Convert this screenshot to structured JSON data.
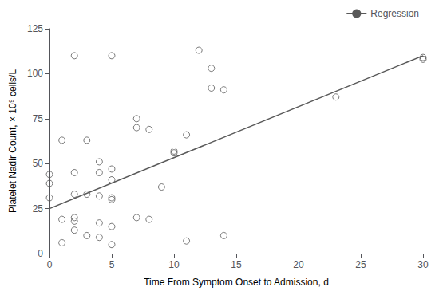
{
  "chart_data": {
    "type": "scatter",
    "x_label": "Time From Symptom Onset to Admission, d",
    "y_label": "Platelet Nadir Count, × 10⁹ cells/L",
    "xlim": [
      0,
      30
    ],
    "ylim": [
      0,
      125
    ],
    "xticks": [
      0,
      5,
      10,
      15,
      20,
      25,
      30
    ],
    "yticks": [
      0,
      25,
      50,
      75,
      100,
      125
    ],
    "grid": false,
    "legend": "upper right",
    "series": [
      {
        "type": "scatter",
        "color": "#595959",
        "marker": "circle",
        "x": [
          0,
          0,
          0,
          1,
          1,
          1,
          2,
          2,
          2,
          2,
          2,
          2,
          3,
          3,
          3,
          4,
          4,
          4,
          4,
          4,
          5,
          5,
          5,
          5,
          5,
          5,
          5,
          7,
          7,
          7,
          8,
          8,
          9,
          10,
          10,
          11,
          11,
          12,
          13,
          13,
          14,
          14,
          23,
          30,
          30
        ],
        "values": [
          44,
          39,
          31,
          63,
          19,
          6,
          110,
          45,
          33,
          20,
          18,
          13,
          63,
          33,
          10,
          51,
          45,
          32,
          17,
          9,
          110,
          47,
          41,
          31,
          30,
          15,
          5,
          75,
          20,
          70,
          69,
          19,
          37,
          57,
          56,
          66,
          7,
          113,
          103,
          92,
          91,
          10,
          87,
          109,
          108
        ]
      },
      {
        "type": "line",
        "name": "Regression",
        "color": "#595959",
        "line_style": "solid",
        "x": [
          0,
          30
        ],
        "values": [
          25.0,
          109.99
        ]
      }
    ]
  }
}
